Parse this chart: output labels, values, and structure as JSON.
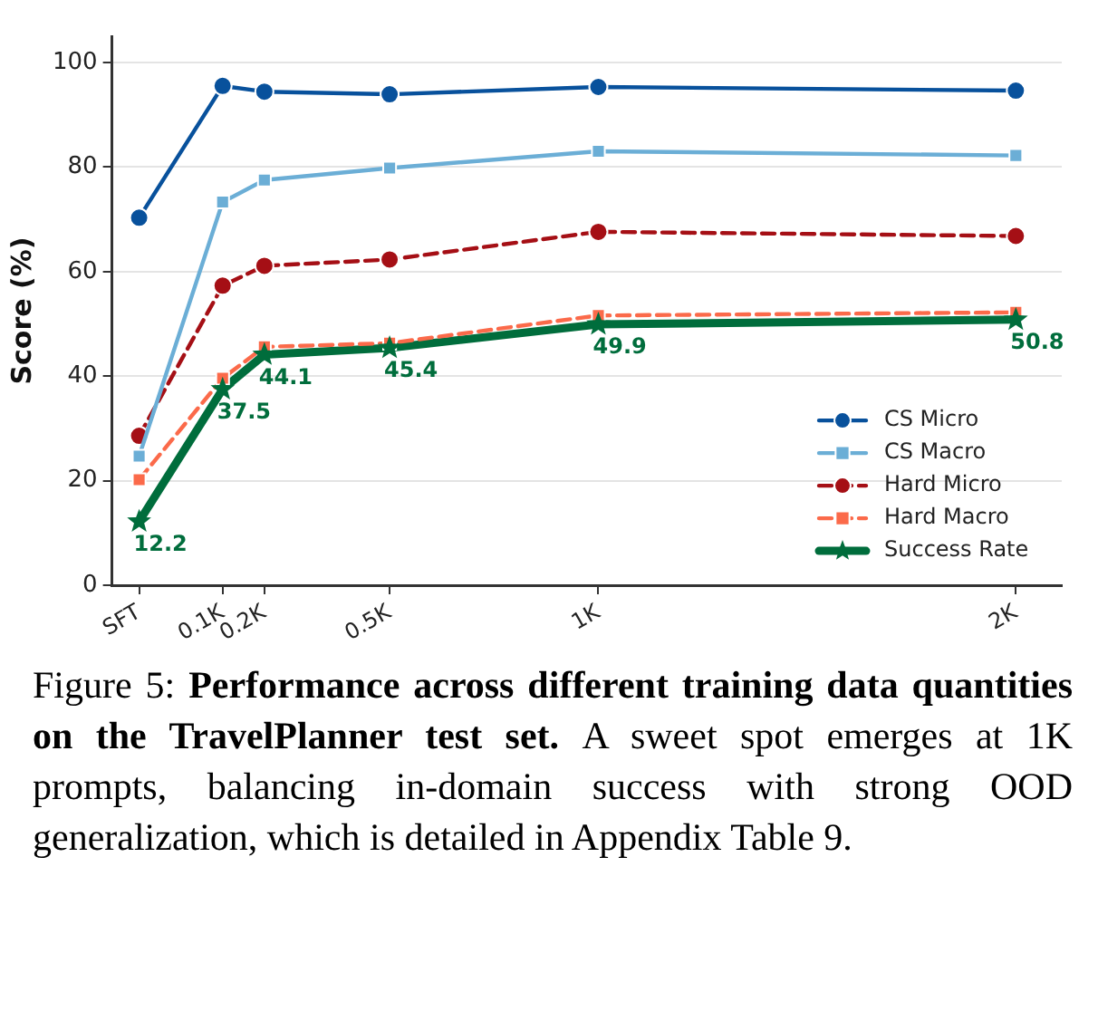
{
  "chart_data": {
    "type": "line",
    "ylabel": "Score (%)",
    "x": [
      -0.1,
      0.1,
      0.2,
      0.5,
      1,
      2
    ],
    "xlim": [
      -0.165,
      2.11
    ],
    "xticks": [
      {
        "value": -0.1,
        "label": "SFT"
      },
      {
        "value": 0.1,
        "label": "0.1K"
      },
      {
        "value": 0.2,
        "label": "0.2K"
      },
      {
        "value": 0.5,
        "label": "0.5K"
      },
      {
        "value": 1,
        "label": "1K"
      },
      {
        "value": 2,
        "label": "2K"
      }
    ],
    "ylim": [
      0,
      105
    ],
    "yticks": [
      0,
      20,
      40,
      60,
      80,
      100
    ],
    "grid": "y",
    "legend": "bottom right",
    "series": [
      {
        "name": "CS Micro",
        "color": "#08519c",
        "marker": "circle",
        "line_style": "solid",
        "values": [
          70.3,
          95.5,
          94.4,
          93.9,
          95.3,
          94.6
        ]
      },
      {
        "name": "CS Macro",
        "color": "#6baed6",
        "marker": "square",
        "line_style": "solid",
        "values": [
          24.7,
          73.3,
          77.5,
          79.8,
          83.0,
          82.2
        ]
      },
      {
        "name": "Hard Micro",
        "color": "#a50f15",
        "marker": "circle",
        "line_style": "dashed",
        "values": [
          28.6,
          57.3,
          61.1,
          62.3,
          67.6,
          66.8
        ]
      },
      {
        "name": "Hard Macro",
        "color": "#fb6a4a",
        "marker": "square",
        "line_style": "dashed",
        "values": [
          20.2,
          39.6,
          45.6,
          46.3,
          51.6,
          52.2
        ]
      },
      {
        "name": "Success Rate",
        "color": "#006d3c",
        "marker": "star",
        "line_style": "solid",
        "values": [
          12.2,
          37.5,
          44.1,
          45.4,
          49.9,
          50.8
        ],
        "value_labels": [
          "12.2",
          "37.5",
          "44.1",
          "45.4",
          "49.9",
          "50.8"
        ]
      }
    ],
    "annotations": [
      "Figure 5:",
      "Performance across different training data quantities on the TravelPlanner test set.",
      "A sweet spot emerges at 1K prompts, balancing in-domain success with strong OOD generalization, which is detailed in Appendix Table 9."
    ]
  }
}
